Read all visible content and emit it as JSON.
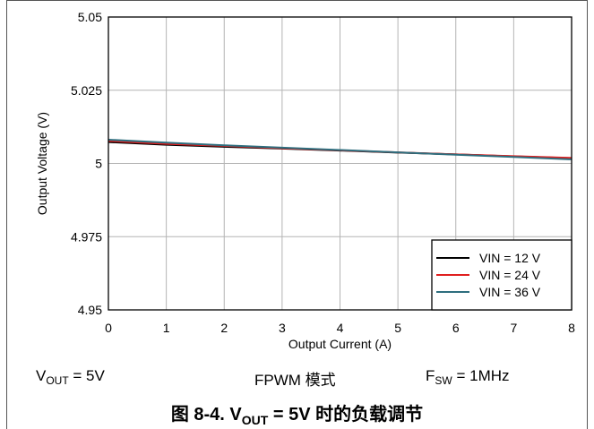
{
  "chart_data": {
    "type": "line",
    "xlabel": "Output Current (A)",
    "ylabel": "Output Voltage (V)",
    "xlim": [
      0,
      8
    ],
    "ylim": [
      4.95,
      5.05
    ],
    "x_ticks": [
      "0",
      "1",
      "2",
      "3",
      "4",
      "5",
      "6",
      "7",
      "8"
    ],
    "y_ticks": [
      "4.95",
      "4.975",
      "5",
      "5.025",
      "5.05"
    ],
    "grid": true,
    "legend_position": "bottom-right",
    "series": [
      {
        "name": "VIN = 12 V",
        "color": "#000000",
        "x": [
          0,
          1,
          2,
          3,
          4,
          5,
          6,
          7,
          8
        ],
        "y": [
          5.0073,
          5.0064,
          5.0057,
          5.0051,
          5.0044,
          5.0037,
          5.0031,
          5.0024,
          5.0018
        ]
      },
      {
        "name": "VIN = 24 V",
        "color": "#e01e1e",
        "x": [
          0,
          1,
          2,
          3,
          4,
          5,
          6,
          7,
          8
        ],
        "y": [
          5.0077,
          5.0067,
          5.006,
          5.0052,
          5.0045,
          5.0038,
          5.0031,
          5.0025,
          5.0019
        ]
      },
      {
        "name": "VIN = 36 V",
        "color": "#2e6e7e",
        "x": [
          0,
          1,
          2,
          3,
          4,
          5,
          6,
          7,
          8
        ],
        "y": [
          5.0081,
          5.0071,
          5.0062,
          5.0054,
          5.0046,
          5.0038,
          5.003,
          5.0022,
          5.0014
        ]
      }
    ]
  },
  "conditions": {
    "vout_main": "V",
    "vout_sub": "OUT",
    "vout_rest": " = 5V",
    "mode": "FPWM 模式",
    "fsw_main": "F",
    "fsw_sub": "SW",
    "fsw_rest": " = 1MHz"
  },
  "caption": {
    "prefix": "图 8-4. V",
    "sub": "OUT",
    "suffix": " = 5V 时的负载调节"
  }
}
